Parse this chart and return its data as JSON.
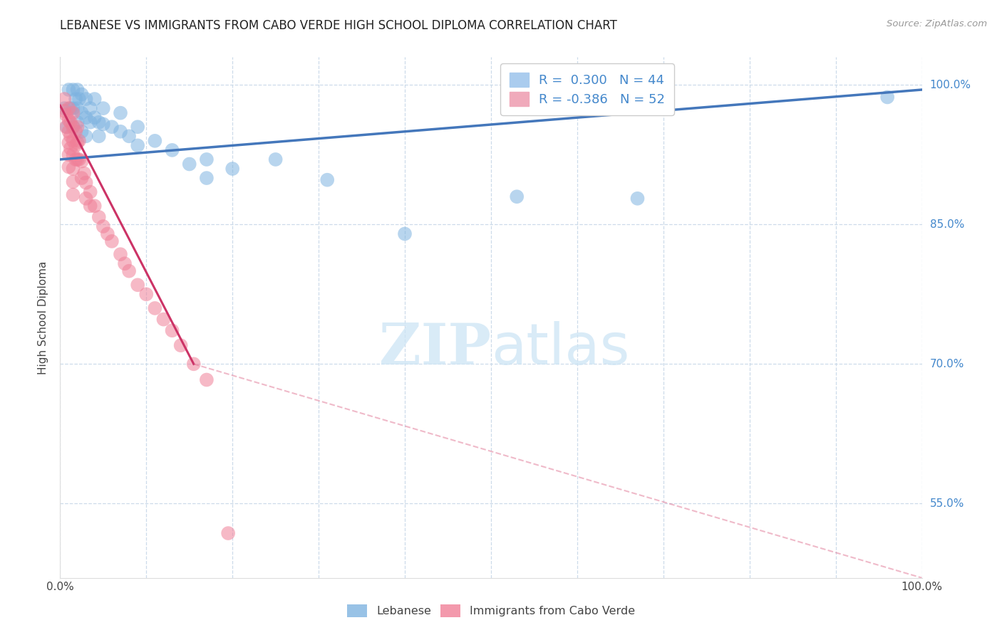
{
  "title": "LEBANESE VS IMMIGRANTS FROM CABO VERDE HIGH SCHOOL DIPLOMA CORRELATION CHART",
  "source": "Source: ZipAtlas.com",
  "ylabel": "High School Diploma",
  "xlim": [
    0.0,
    1.0
  ],
  "ylim": [
    0.47,
    1.03
  ],
  "xticks": [
    0.0,
    0.1,
    0.2,
    0.3,
    0.4,
    0.5,
    0.6,
    0.7,
    0.8,
    0.9,
    1.0
  ],
  "yticks": [
    0.55,
    0.7,
    0.85,
    1.0
  ],
  "grid_color": "#c8d8e8",
  "watermark_zip": "ZIP",
  "watermark_atlas": "atlas",
  "legend_R1": "0.300",
  "legend_N1": "44",
  "legend_R2": "-0.386",
  "legend_N2": "52",
  "blue_color": "#7eb3e0",
  "pink_color": "#f08098",
  "blue_scatter": [
    [
      0.005,
      0.975
    ],
    [
      0.008,
      0.955
    ],
    [
      0.01,
      0.995
    ],
    [
      0.012,
      0.975
    ],
    [
      0.015,
      0.995
    ],
    [
      0.015,
      0.975
    ],
    [
      0.015,
      0.955
    ],
    [
      0.018,
      0.985
    ],
    [
      0.02,
      0.995
    ],
    [
      0.02,
      0.975
    ],
    [
      0.02,
      0.96
    ],
    [
      0.022,
      0.985
    ],
    [
      0.025,
      0.99
    ],
    [
      0.025,
      0.97
    ],
    [
      0.025,
      0.95
    ],
    [
      0.03,
      0.985
    ],
    [
      0.03,
      0.965
    ],
    [
      0.03,
      0.945
    ],
    [
      0.035,
      0.975
    ],
    [
      0.035,
      0.96
    ],
    [
      0.04,
      0.985
    ],
    [
      0.04,
      0.965
    ],
    [
      0.045,
      0.96
    ],
    [
      0.045,
      0.945
    ],
    [
      0.05,
      0.975
    ],
    [
      0.05,
      0.958
    ],
    [
      0.06,
      0.955
    ],
    [
      0.07,
      0.97
    ],
    [
      0.07,
      0.95
    ],
    [
      0.08,
      0.945
    ],
    [
      0.09,
      0.955
    ],
    [
      0.09,
      0.935
    ],
    [
      0.11,
      0.94
    ],
    [
      0.13,
      0.93
    ],
    [
      0.15,
      0.915
    ],
    [
      0.17,
      0.92
    ],
    [
      0.17,
      0.9
    ],
    [
      0.2,
      0.91
    ],
    [
      0.25,
      0.92
    ],
    [
      0.31,
      0.898
    ],
    [
      0.4,
      0.84
    ],
    [
      0.53,
      0.88
    ],
    [
      0.67,
      0.878
    ],
    [
      0.96,
      0.987
    ]
  ],
  "pink_scatter": [
    [
      0.005,
      0.985
    ],
    [
      0.005,
      0.972
    ],
    [
      0.007,
      0.968
    ],
    [
      0.007,
      0.955
    ],
    [
      0.01,
      0.975
    ],
    [
      0.01,
      0.962
    ],
    [
      0.01,
      0.95
    ],
    [
      0.01,
      0.938
    ],
    [
      0.01,
      0.925
    ],
    [
      0.01,
      0.912
    ],
    [
      0.012,
      0.96
    ],
    [
      0.012,
      0.945
    ],
    [
      0.012,
      0.932
    ],
    [
      0.015,
      0.97
    ],
    [
      0.015,
      0.955
    ],
    [
      0.015,
      0.94
    ],
    [
      0.015,
      0.925
    ],
    [
      0.015,
      0.91
    ],
    [
      0.015,
      0.896
    ],
    [
      0.015,
      0.882
    ],
    [
      0.018,
      0.95
    ],
    [
      0.018,
      0.935
    ],
    [
      0.018,
      0.92
    ],
    [
      0.02,
      0.955
    ],
    [
      0.02,
      0.938
    ],
    [
      0.02,
      0.92
    ],
    [
      0.022,
      0.94
    ],
    [
      0.022,
      0.92
    ],
    [
      0.025,
      0.918
    ],
    [
      0.025,
      0.9
    ],
    [
      0.028,
      0.905
    ],
    [
      0.03,
      0.895
    ],
    [
      0.03,
      0.878
    ],
    [
      0.035,
      0.885
    ],
    [
      0.035,
      0.87
    ],
    [
      0.04,
      0.87
    ],
    [
      0.045,
      0.858
    ],
    [
      0.05,
      0.848
    ],
    [
      0.055,
      0.84
    ],
    [
      0.06,
      0.832
    ],
    [
      0.07,
      0.818
    ],
    [
      0.075,
      0.808
    ],
    [
      0.08,
      0.8
    ],
    [
      0.09,
      0.785
    ],
    [
      0.1,
      0.775
    ],
    [
      0.11,
      0.76
    ],
    [
      0.12,
      0.748
    ],
    [
      0.13,
      0.736
    ],
    [
      0.14,
      0.72
    ],
    [
      0.155,
      0.7
    ],
    [
      0.17,
      0.683
    ],
    [
      0.195,
      0.518
    ]
  ],
  "blue_line": {
    "x0": 0.0,
    "y0": 0.92,
    "x1": 1.0,
    "y1": 0.995
  },
  "pink_line_solid": {
    "x0": 0.0,
    "y0": 0.978,
    "x1": 0.155,
    "y1": 0.7
  },
  "pink_line_dash": {
    "x0": 0.155,
    "y0": 0.7,
    "x1": 1.0,
    "y1": 0.47
  }
}
